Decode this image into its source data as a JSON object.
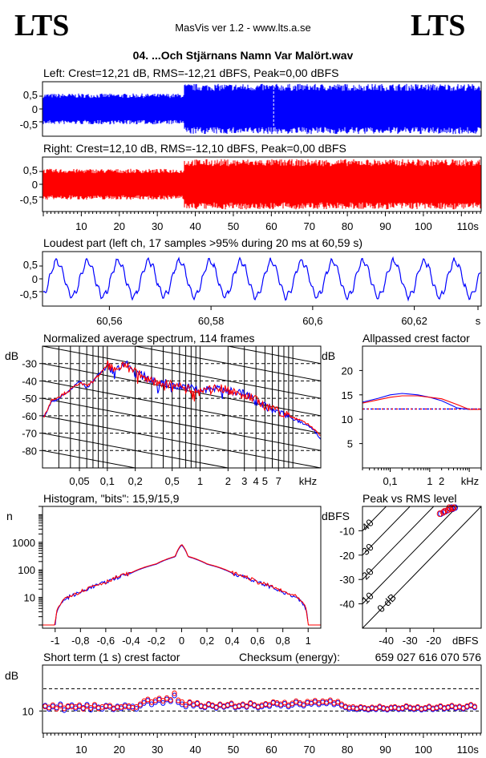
{
  "header": {
    "logo_left": "LTS",
    "logo_right": "LTS",
    "app": "MasVis ver 1.2 - www.lts.a.se",
    "track": "04. ...Och Stjärnans Namn Var Malört.wav"
  },
  "checksum_label": "Checksum (energy):",
  "checksum_value": "659 027 616 070 576",
  "colors": {
    "left": "#0000ff",
    "right": "#ff0000",
    "axis": "#000000"
  },
  "chart_data": [
    {
      "id": "left-waveform",
      "type": "area",
      "title": "Left: Crest=12,21 dB, RMS=-12,21 dBFS, Peak=0,00 dBFS",
      "ylim": [
        -1,
        1
      ],
      "yticks": [
        "0,5",
        "0",
        "-0,5"
      ],
      "x_range_s": [
        0,
        115
      ],
      "envelope": {
        "quiet_section_s": [
          0,
          37
        ],
        "quiet_level": 0.6,
        "loud_level": 0.98
      },
      "marker_s": 60.6
    },
    {
      "id": "right-waveform",
      "type": "area",
      "title": "Right: Crest=12,10 dB, RMS=-12,10 dBFS, Peak=0,00 dBFS",
      "ylim": [
        -1,
        1
      ],
      "yticks": [
        "0,5",
        "0",
        "-0,5"
      ],
      "x_range_s": [
        0,
        115
      ],
      "xticks": [
        "10",
        "20",
        "30",
        "40",
        "50",
        "60",
        "70",
        "80",
        "90",
        "100",
        "110s"
      ],
      "envelope": {
        "quiet_section_s": [
          0,
          37
        ],
        "quiet_level": 0.6,
        "loud_level": 0.98
      }
    },
    {
      "id": "loudest-part",
      "type": "line",
      "title": "Loudest part (left  ch, 17 samples >95% during 20 ms at 60,59 s)",
      "ylim": [
        -1,
        1
      ],
      "yticks": [
        "0,5",
        "0",
        "-0,5"
      ],
      "xlim": [
        60.547,
        60.633
      ],
      "xticks": [
        "60,56",
        "60,58",
        "60,6",
        "60,62",
        "s"
      ],
      "approx_frequency_hz": 166
    },
    {
      "id": "average-spectrum",
      "type": "line",
      "title": "Normalized average spectrum, 114 frames",
      "ylabel": "dB",
      "ylim": [
        -90,
        -20
      ],
      "yticks": [
        "-30",
        "-40",
        "-50",
        "-60",
        "-70",
        "-80"
      ],
      "xscale": "log",
      "xlim_khz": [
        0.02,
        20
      ],
      "xticks": [
        "0,05",
        "0,1",
        "0,2",
        "0,5",
        "1",
        "2",
        "3",
        "4",
        "5",
        "7",
        "kHz"
      ],
      "series": [
        {
          "name": "",
          "color": "#0000ff",
          "x_khz": [
            0.02,
            0.025,
            0.03,
            0.04,
            0.05,
            0.06,
            0.07,
            0.08,
            0.1,
            0.12,
            0.15,
            0.2,
            0.3,
            0.5,
            0.7,
            1,
            1.5,
            2,
            3,
            4,
            5,
            7,
            10,
            15,
            20
          ],
          "y_db": [
            -62,
            -52,
            -50,
            -45,
            -40,
            -44,
            -40,
            -36,
            -32,
            -36,
            -30,
            -36,
            -40,
            -43,
            -44,
            -46,
            -45,
            -46,
            -48,
            -52,
            -55,
            -58,
            -62,
            -66,
            -73
          ]
        },
        {
          "name": "",
          "color": "#ff0000",
          "x_khz": [
            0.02,
            0.025,
            0.03,
            0.04,
            0.05,
            0.06,
            0.07,
            0.08,
            0.1,
            0.12,
            0.15,
            0.2,
            0.3,
            0.5,
            0.7,
            1,
            1.5,
            2,
            3,
            4,
            5,
            7,
            10,
            15,
            20
          ],
          "y_db": [
            -62,
            -51,
            -49,
            -45,
            -41,
            -43,
            -40,
            -37,
            -31,
            -35,
            -30,
            -35,
            -41,
            -42,
            -45,
            -47,
            -44,
            -46,
            -49,
            -51,
            -56,
            -58,
            -61,
            -65,
            -72
          ]
        }
      ]
    },
    {
      "id": "allpassed-crest",
      "type": "line",
      "title": "Allpassed crest factor",
      "ylabel": "dB",
      "ylim": [
        0,
        25
      ],
      "yticks": [
        "20",
        "15",
        "10",
        "5"
      ],
      "xscale": "log",
      "xlim_khz": [
        0.02,
        20
      ],
      "xticks": [
        "0,1",
        "1",
        "2",
        "kHz"
      ],
      "series": [
        {
          "name": "",
          "color": "#0000ff",
          "x_khz": [
            0.02,
            0.05,
            0.1,
            0.2,
            0.5,
            1,
            2,
            5,
            10,
            20
          ],
          "y_db": [
            13.5,
            14.3,
            15.0,
            15.3,
            15.0,
            14.5,
            13.8,
            12.3,
            12.0,
            12.0
          ]
        },
        {
          "name": "",
          "color": "#ff0000",
          "x_khz": [
            0.02,
            0.05,
            0.1,
            0.2,
            0.5,
            1,
            2,
            5,
            10,
            20
          ],
          "y_db": [
            13.3,
            14.0,
            14.5,
            14.8,
            14.8,
            14.5,
            14.2,
            13.0,
            12.0,
            12.0
          ]
        }
      ],
      "reference_db": 12.1
    },
    {
      "id": "histogram",
      "type": "line",
      "title": "Histogram, \"bits\": 15,9/15,9",
      "ylabel": "n",
      "yscale": "log",
      "ylim": [
        1,
        20000
      ],
      "yticks": [
        "1000",
        "100",
        "10"
      ],
      "xlim": [
        -1.1,
        1.1
      ],
      "xticks": [
        "-1",
        "-0,8",
        "-0,6",
        "-0,4",
        "-0,2",
        "0",
        "0,2",
        "0,4",
        "0,6",
        "0,8",
        "1"
      ],
      "series": [
        {
          "name": "",
          "color": "#0000ff",
          "x": [
            -1,
            -0.98,
            -0.9,
            -0.8,
            -0.6,
            -0.4,
            -0.2,
            -0.05,
            0,
            0.05,
            0.2,
            0.4,
            0.6,
            0.8,
            0.9,
            0.98,
            1
          ],
          "y": [
            1,
            4,
            10,
            15,
            35,
            75,
            160,
            300,
            800,
            300,
            160,
            75,
            35,
            15,
            10,
            4,
            1
          ]
        },
        {
          "name": "",
          "color": "#ff0000",
          "x": [
            -1.1,
            -1,
            -0.98,
            -0.9,
            -0.8,
            -0.6,
            -0.4,
            -0.2,
            -0.05,
            0,
            0.05,
            0.2,
            0.4,
            0.6,
            0.8,
            0.9,
            0.98,
            1,
            1.1
          ],
          "y": [
            1,
            1,
            4,
            11,
            16,
            36,
            78,
            165,
            310,
            850,
            310,
            165,
            78,
            36,
            16,
            11,
            4,
            1,
            1
          ]
        }
      ]
    },
    {
      "id": "peak-vs-rms",
      "type": "scatter",
      "title": "Peak vs RMS level",
      "ylabel": "dBFS",
      "xlabel": "dBFS",
      "xlim": [
        -50,
        0
      ],
      "ylim": [
        -50,
        0
      ],
      "yticks": [
        "-10",
        "-20",
        "-30",
        "-40"
      ],
      "xticks": [
        "-40",
        "-30",
        "-20"
      ],
      "diagonal_labels": [
        "40",
        "30",
        "20",
        "10",
        "0 dB"
      ],
      "series": [
        {
          "name": "",
          "color": "#0000ff",
          "points": [
            [
              -17,
              -3
            ],
            [
              -15,
              -2
            ],
            [
              -14,
              -1.5
            ],
            [
              -13,
              -1
            ],
            [
              -12,
              -1
            ],
            [
              -11,
              -0.5
            ],
            [
              -16,
              -2.5
            ],
            [
              -12.5,
              -0.5
            ]
          ]
        },
        {
          "name": "",
          "color": "#ff0000",
          "points": [
            [
              -17.5,
              -3
            ],
            [
              -15.5,
              -2
            ],
            [
              -14,
              -1.5
            ],
            [
              -13,
              -1
            ],
            [
              -12,
              -0.8
            ],
            [
              -11.5,
              -0.5
            ],
            [
              -16,
              -2.5
            ],
            [
              -13.5,
              -0.5
            ]
          ]
        }
      ]
    },
    {
      "id": "short-term-crest",
      "type": "scatter",
      "title": "Short term (1 s) crest factor",
      "ylabel": "dB",
      "ylim": [
        5,
        20
      ],
      "yticks": [
        "10"
      ],
      "dashed_levels_db": [
        10,
        15
      ],
      "x_range_s": [
        0,
        115
      ],
      "xticks": [
        "10",
        "20",
        "30",
        "40",
        "50",
        "60",
        "70",
        "80",
        "90",
        "100",
        "110s"
      ],
      "series": [
        {
          "name": "",
          "color": "#0000ff",
          "values": [
            11.2,
            10.5,
            11.0,
            10.8,
            11.5,
            10.2,
            10.9,
            11.3,
            10.6,
            11.0,
            10.7,
            11.4,
            10.3,
            11.1,
            10.8,
            10.5,
            11.2,
            10.9,
            10.4,
            11.0,
            10.6,
            11.3,
            10.8,
            11.0,
            10.5,
            11.2,
            11.8,
            12.3,
            11.5,
            12.0,
            12.5,
            11.8,
            12.6,
            12.2,
            13.5,
            12.0,
            11.5,
            11.0,
            11.8,
            11.2,
            11.6,
            11.0,
            10.8,
            11.4,
            11.1,
            10.7,
            11.3,
            10.9,
            11.2,
            11.5,
            10.8,
            11.0,
            11.3,
            10.9,
            11.6,
            11.2,
            10.8,
            11.0,
            11.4,
            11.1,
            11.8,
            11.5,
            11.2,
            11.6,
            11.0,
            11.4,
            11.9,
            11.5,
            11.2,
            11.8,
            11.6,
            12.0,
            11.5,
            11.9,
            11.7,
            12.1,
            11.5,
            11.8,
            11.2,
            10.8,
            10.5,
            10.6,
            10.4,
            10.7,
            10.5,
            10.3,
            10.6,
            10.4,
            10.8,
            10.5,
            10.3,
            10.6,
            10.7,
            10.4,
            10.5,
            10.9,
            10.6,
            10.4,
            10.7,
            10.3,
            10.5,
            10.8,
            10.4,
            10.6,
            10.9,
            10.5,
            10.7,
            11.0,
            10.6,
            10.8,
            10.5,
            10.9,
            11.2,
            10.8
          ]
        },
        {
          "name": "",
          "color": "#ff0000",
          "values": [
            11.0,
            10.8,
            11.3,
            10.5,
            11.2,
            10.6,
            11.1,
            11.0,
            10.9,
            11.3,
            10.5,
            11.1,
            10.7,
            11.4,
            10.6,
            10.9,
            11.0,
            11.2,
            10.6,
            10.8,
            10.9,
            11.0,
            11.1,
            10.7,
            10.9,
            11.5,
            12.2,
            12.6,
            12.0,
            12.4,
            12.8,
            12.3,
            12.9,
            12.5,
            14.0,
            12.4,
            12.0,
            11.4,
            12.0,
            11.5,
            11.8,
            11.2,
            11.0,
            11.6,
            11.3,
            10.9,
            11.5,
            11.1,
            11.4,
            11.7,
            11.0,
            11.2,
            11.5,
            11.1,
            11.8,
            11.4,
            11.0,
            11.3,
            11.6,
            11.4,
            12.0,
            11.8,
            11.5,
            11.9,
            11.3,
            11.7,
            12.2,
            11.8,
            11.5,
            12.1,
            11.9,
            12.3,
            11.8,
            12.2,
            12.0,
            12.4,
            11.8,
            12.1,
            11.5,
            11.0,
            10.8,
            10.9,
            10.6,
            10.9,
            10.7,
            10.5,
            10.8,
            10.6,
            11.0,
            10.7,
            10.5,
            10.8,
            10.9,
            10.6,
            10.7,
            11.1,
            10.8,
            10.6,
            10.9,
            10.5,
            10.7,
            11.0,
            10.6,
            10.8,
            11.1,
            10.7,
            10.9,
            11.2,
            10.8,
            11.0,
            10.7,
            11.1,
            11.4,
            11.0
          ]
        }
      ]
    }
  ]
}
